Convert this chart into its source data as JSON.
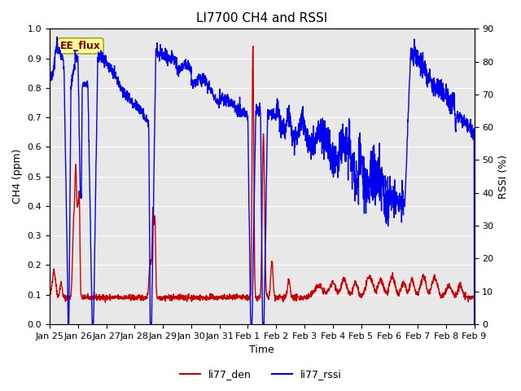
{
  "title": "LI7700 CH4 and RSSI",
  "xlabel": "Time",
  "ylabel_left": "CH4 (ppm)",
  "ylabel_right": "RSSI (%)",
  "ylim_left": [
    0,
    1.0
  ],
  "ylim_right": [
    0,
    90
  ],
  "legend_labels": [
    "li77_den",
    "li77_rssi"
  ],
  "annotation_text": "EE_flux",
  "annotation_bg": "#ffff99",
  "annotation_border": "#999900",
  "plot_bg": "#e8e8e8",
  "fig_bg": "#ffffff",
  "title_fontsize": 11,
  "axis_fontsize": 9,
  "tick_fontsize": 8,
  "line_color_red": "#cc0000",
  "line_color_blue": "#0000ee",
  "line_width": 1.0,
  "xtick_positions": [
    0,
    1,
    2,
    3,
    4,
    5,
    6,
    7,
    8,
    9,
    10,
    11,
    12,
    13,
    14,
    15
  ],
  "xtick_labels": [
    "Jan 25",
    "Jan 26",
    "Jan 27",
    "Jan 28",
    "Jan 29",
    "Jan 30",
    "Jan 31",
    "Feb 1",
    "Feb 2",
    "Feb 3",
    "Feb 4",
    "Feb 5",
    "Feb 6",
    "Feb 7",
    "Feb 8",
    "Feb 9"
  ]
}
